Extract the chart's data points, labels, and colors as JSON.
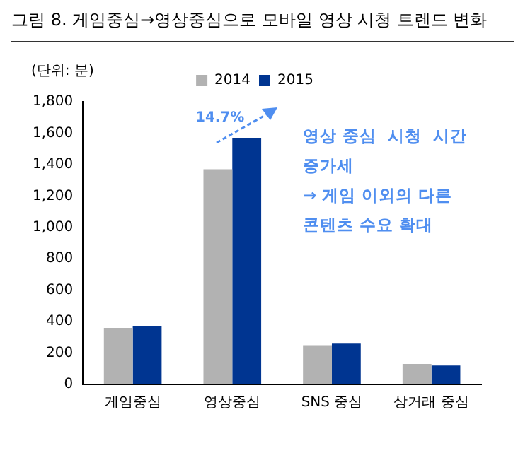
{
  "chart_data": {
    "type": "bar",
    "title": "그림 8. 게임중심→영상중심으로 모바일 영상 시청 트렌드 변화",
    "ylabel": "(단위: 분)",
    "categories": [
      "게임중심",
      "영상중심",
      "SNS 중심",
      "상거래 중심"
    ],
    "series": [
      {
        "name": "2014",
        "color": "#b2b2b2",
        "values": [
          360,
          1370,
          250,
          130
        ]
      },
      {
        "name": "2015",
        "color": "#003591",
        "values": [
          370,
          1570,
          260,
          120
        ]
      }
    ],
    "ylim": [
      0,
      1800
    ],
    "yticks": [
      0,
      200,
      400,
      600,
      800,
      {
        "value": 1000,
        "label": "1,000"
      },
      {
        "value": 1200,
        "label": "1,200"
      },
      {
        "value": 1400,
        "label": "1,400"
      },
      {
        "value": 1600,
        "label": "1,600"
      },
      {
        "value": 1800,
        "label": "1,800"
      }
    ],
    "grid": false,
    "legend": "top",
    "annotations": [
      "14.7%",
      "영상 중심  시청  시간\n증가세\n→ 게임 이외의 다른\n콘텐츠 수요 확대"
    ]
  }
}
